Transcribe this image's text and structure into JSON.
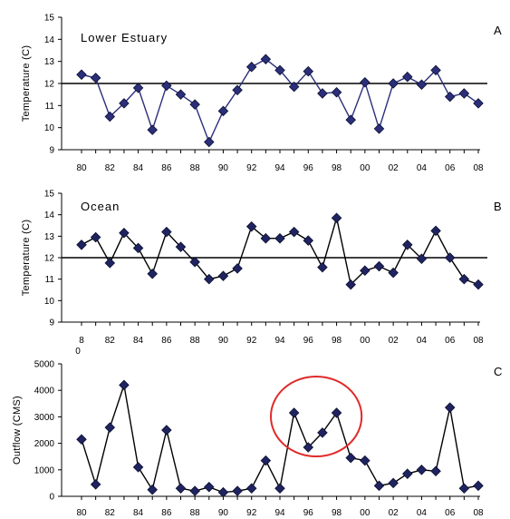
{
  "chart_data": [
    {
      "type": "line",
      "panel_letter": "A",
      "title": "Lower Estuary",
      "ylabel": "Temperature (C)",
      "xlabel": "",
      "ylim": [
        9,
        15
      ],
      "yticks": [
        "9",
        "10",
        "11",
        "12",
        "13",
        "14",
        "15"
      ],
      "xticks": [
        "80",
        "82",
        "84",
        "86",
        "88",
        "90",
        "92",
        "94",
        "96",
        "98",
        "00",
        "02",
        "04",
        "06",
        "08"
      ],
      "reference_line": 12,
      "line_color": "#2b2f7a",
      "marker_color": "#2b2f7a",
      "x": [
        1980,
        1981,
        1982,
        1983,
        1984,
        1985,
        1986,
        1987,
        1988,
        1989,
        1990,
        1991,
        1992,
        1993,
        1994,
        1995,
        1996,
        1997,
        1998,
        1999,
        2000,
        2001,
        2002,
        2003,
        2004,
        2005,
        2006,
        2007,
        2008
      ],
      "values": [
        12.4,
        12.25,
        10.5,
        11.1,
        11.8,
        9.9,
        11.9,
        11.5,
        11.05,
        9.35,
        10.75,
        11.7,
        12.75,
        13.1,
        12.6,
        11.85,
        12.55,
        11.55,
        11.6,
        10.35,
        12.05,
        9.95,
        12.0,
        12.3,
        11.95,
        12.6,
        11.4,
        11.55,
        11.1
      ]
    },
    {
      "type": "line",
      "panel_letter": "B",
      "title": "Ocean",
      "ylabel": "Temperature (C)",
      "xlabel": "",
      "ylim": [
        9,
        15
      ],
      "yticks": [
        "9",
        "10",
        "11",
        "12",
        "13",
        "14",
        "15"
      ],
      "xticks": [
        "8",
        "82",
        "84",
        "86",
        "88",
        "90",
        "92",
        "94",
        "96",
        "98",
        "00",
        "02",
        "04",
        "06",
        "08"
      ],
      "x_first_tick_extra": "0",
      "reference_line": 12,
      "line_color": "#000000",
      "marker_color": "#1f2460",
      "x": [
        1980,
        1981,
        1982,
        1983,
        1984,
        1985,
        1986,
        1987,
        1988,
        1989,
        1990,
        1991,
        1992,
        1993,
        1994,
        1995,
        1996,
        1997,
        1998,
        1999,
        2000,
        2001,
        2002,
        2003,
        2004,
        2005,
        2006,
        2007,
        2008
      ],
      "values": [
        12.6,
        12.95,
        11.75,
        13.15,
        12.45,
        11.25,
        13.2,
        12.5,
        11.8,
        11.0,
        11.15,
        11.5,
        13.45,
        12.9,
        12.9,
        13.2,
        12.8,
        11.55,
        13.85,
        10.75,
        11.4,
        11.6,
        11.3,
        12.6,
        11.95,
        13.25,
        12.0,
        11.0,
        10.75
      ]
    },
    {
      "type": "line",
      "panel_letter": "C",
      "title": "",
      "ylabel": "Outflow (CMS)",
      "xlabel": "",
      "ylim": [
        0,
        5000
      ],
      "yticks": [
        "0",
        "1000",
        "2000",
        "3000",
        "4000",
        "5000"
      ],
      "xticks": [
        "80",
        "82",
        "84",
        "86",
        "88",
        "90",
        "92",
        "94",
        "96",
        "98",
        "00",
        "02",
        "04",
        "06",
        "08"
      ],
      "line_color": "#000000",
      "marker_color": "#1f2460",
      "highlight_color": "#e02a2a",
      "highlight_range": [
        1994,
        1999
      ],
      "x": [
        1980,
        1981,
        1982,
        1983,
        1984,
        1985,
        1986,
        1987,
        1988,
        1989,
        1990,
        1991,
        1992,
        1993,
        1994,
        1995,
        1996,
        1997,
        1998,
        1999,
        2000,
        2001,
        2002,
        2003,
        2004,
        2005,
        2006,
        2007,
        2008
      ],
      "values": [
        2150,
        450,
        2600,
        4200,
        1100,
        250,
        2500,
        300,
        200,
        350,
        150,
        200,
        300,
        1350,
        300,
        3150,
        1850,
        2400,
        3150,
        1450,
        1350,
        400,
        500,
        850,
        1000,
        950,
        3350,
        300,
        400
      ]
    }
  ]
}
